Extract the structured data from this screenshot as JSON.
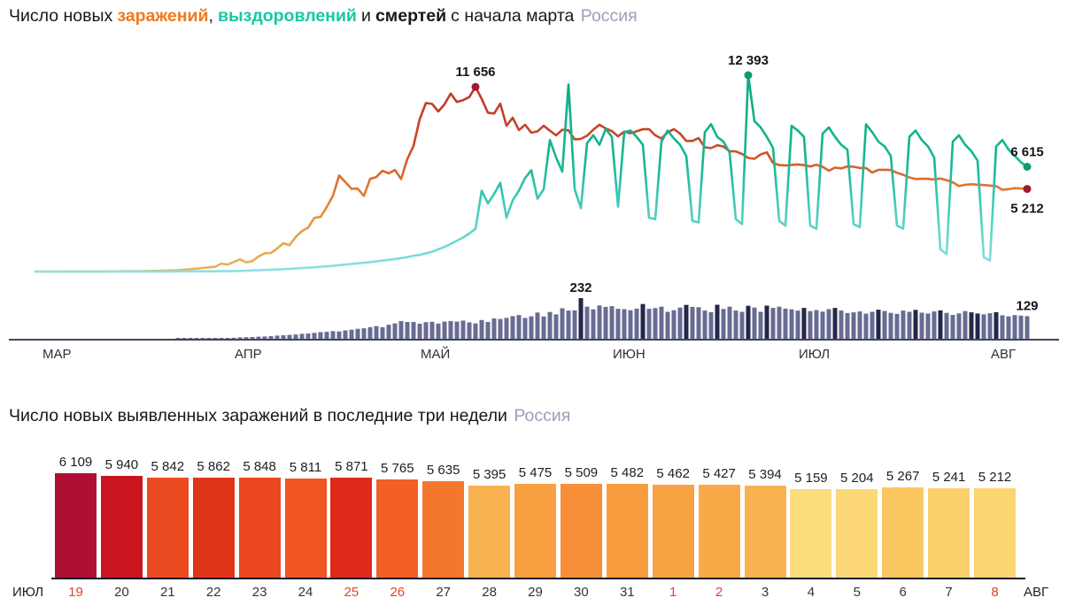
{
  "titles": {
    "top": {
      "prefix": "Число новых",
      "infections": "заражений",
      "comma": ",",
      "recoveries": "выздоровлений",
      "and": "и",
      "deaths": "смертей",
      "suffix": "с начала марта",
      "region": "Россия"
    },
    "bottom": {
      "text": "Число новых выявленных заражений в последние три недели",
      "region": "Россия"
    }
  },
  "colors": {
    "infections_word": "#f0791f",
    "recoveries_word": "#16c8a5",
    "region_text": "#9aa2b4",
    "deaths_bar": "#686c92",
    "deaths_bar_dark": "#232748",
    "top_axis": "#44455c",
    "bottom_axis": "#16182b",
    "weekend_date": "#d9472e",
    "annotation_text": "#141419",
    "month_label": "#2f3038"
  },
  "chart_data": [
    {
      "type": "line+bar",
      "title": "Число новых заражений, выздоровлений и смертей с начала марта",
      "region": "Россия",
      "x_unit": "day (1 марта — 8 августа)",
      "x_months": [
        "МАР",
        "АПР",
        "МАЙ",
        "ИЮН",
        "ИЮЛ",
        "АВГ"
      ],
      "month_start_day": [
        0,
        31,
        61,
        92,
        122,
        153
      ],
      "ylim": [
        0,
        12393
      ],
      "grid": false,
      "legend_position": "in-title",
      "series": [
        {
          "name": "заражений",
          "type": "line",
          "peak_label": "11 656",
          "end_label": "5 212",
          "dot_color": "#9c1b2e",
          "gradient": [
            [
              "0",
              "#bf3328"
            ],
            [
              "0.35",
              "#c84a28"
            ],
            [
              "0.55",
              "#e2712d"
            ],
            [
              "0.78",
              "#eb9a3f"
            ],
            [
              "1",
              "#e6b55c"
            ]
          ],
          "values": [
            0,
            0,
            1,
            1,
            2,
            2,
            3,
            3,
            4,
            5,
            6,
            7,
            9,
            11,
            14,
            17,
            21,
            26,
            32,
            40,
            52,
            61,
            71,
            87,
            120,
            150,
            182,
            228,
            270,
            302,
            501,
            440,
            601,
            771,
            582,
            658,
            954,
            1154,
            1175,
            1459,
            1786,
            1667,
            2186,
            2558,
            2774,
            3388,
            3448,
            4070,
            4785,
            6060,
            5642,
            5220,
            5236,
            4774,
            5849,
            5966,
            6361,
            6198,
            6411,
            5841,
            7099,
            7933,
            9623,
            10633,
            10581,
            10102,
            10559,
            11231,
            10699,
            10817,
            11012,
            11656,
            10899,
            10028,
            9974,
            10598,
            9200,
            9709,
            8926,
            9263,
            8764,
            8849,
            9200,
            8894,
            8599,
            8946,
            8915,
            8338,
            8371,
            8572,
            8952,
            9268,
            9035,
            8863,
            8536,
            8831,
            8726,
            8855,
            8984,
            8985,
            8595,
            8404,
            8779,
            8987,
            8706,
            8246,
            8248,
            8423,
            7843,
            7790,
            7972,
            7889,
            7600,
            7580,
            7425,
            7176,
            7113,
            7390,
            7523,
            6852,
            6719,
            6693,
            6735,
            6760,
            6714,
            6632,
            6736,
            6611,
            6368,
            6562,
            6509,
            6635,
            6615,
            6537,
            6537,
            6248,
            6422,
            6428,
            6406,
            6234,
            6109,
            5940,
            5842,
            5862,
            5848,
            5811,
            5871,
            5765,
            5635,
            5395,
            5475,
            5509,
            5482,
            5462,
            5427,
            5394,
            5159,
            5204,
            5267,
            5241,
            5212
          ]
        },
        {
          "name": "выздоровлений",
          "type": "line",
          "peak_label": "12 393",
          "end_label": "6 615",
          "dot_color": "#0f9d62",
          "gradient": [
            [
              "0",
              "#0ca97d"
            ],
            [
              "0.45",
              "#16b795"
            ],
            [
              "0.72",
              "#4fd0c2"
            ],
            [
              "1",
              "#8fe0e4"
            ]
          ],
          "values": [
            0,
            0,
            0,
            0,
            0,
            0,
            0,
            0,
            1,
            1,
            1,
            1,
            2,
            2,
            2,
            3,
            3,
            4,
            4,
            5,
            6,
            7,
            8,
            9,
            10,
            11,
            12,
            14,
            16,
            18,
            20,
            22,
            30,
            40,
            55,
            70,
            85,
            100,
            115,
            130,
            150,
            170,
            190,
            215,
            240,
            270,
            300,
            330,
            365,
            400,
            440,
            480,
            520,
            560,
            600,
            640,
            690,
            740,
            790,
            850,
            910,
            1000,
            1050,
            1150,
            1250,
            1400,
            1550,
            1750,
            1950,
            2150,
            2400,
            2700,
            5100,
            4300,
            4900,
            5600,
            3400,
            4500,
            5100,
            5900,
            6400,
            4600,
            5200,
            8300,
            7200,
            6300,
            11800,
            5200,
            4000,
            8100,
            8600,
            8000,
            9000,
            8500,
            4100,
            8800,
            8900,
            8500,
            8000,
            3400,
            3300,
            8200,
            8900,
            8400,
            8000,
            7300,
            3200,
            3100,
            8800,
            9300,
            8500,
            8200,
            7500,
            3300,
            3000,
            12393,
            9500,
            9100,
            8500,
            7800,
            3200,
            2900,
            9200,
            8900,
            8500,
            2900,
            2700,
            8700,
            9100,
            8500,
            8000,
            7700,
            3000,
            2800,
            9300,
            8800,
            8200,
            7900,
            7300,
            2900,
            2700,
            8500,
            8900,
            8300,
            7900,
            7200,
            1400,
            1100,
            8200,
            8600,
            8000,
            7600,
            7000,
            900,
            700,
            7900,
            8300,
            7700,
            7300,
            6900,
            6615
          ]
        },
        {
          "name": "смертей",
          "type": "bar",
          "peak_label": "232",
          "end_label": "129",
          "dark_days": [
            88,
            98,
            105,
            110,
            115,
            118,
            124,
            129,
            136,
            142,
            146,
            151,
            152,
            155
          ],
          "values": [
            0,
            0,
            0,
            0,
            0,
            0,
            0,
            0,
            0,
            0,
            0,
            0,
            0,
            0,
            0,
            0,
            0,
            0,
            0,
            0,
            0,
            0,
            0,
            1,
            1,
            1,
            2,
            2,
            3,
            4,
            4,
            5,
            6,
            8,
            9,
            10,
            12,
            13,
            15,
            18,
            20,
            22,
            24,
            28,
            30,
            34,
            38,
            40,
            44,
            42,
            48,
            52,
            57,
            60,
            66,
            72,
            66,
            80,
            88,
            101,
            96,
            96,
            86,
            95,
            97,
            87,
            98,
            101,
            98,
            104,
            94,
            88,
            107,
            96,
            116,
            113,
            119,
            129,
            135,
            119,
            128,
            150,
            127,
            153,
            139,
            174,
            161,
            162,
            232,
            183,
            168,
            190,
            182,
            186,
            171,
            169,
            163,
            172,
            198,
            171,
            175,
            183,
            154,
            163,
            178,
            193,
            182,
            180,
            161,
            152,
            194,
            170,
            183,
            161,
            154,
            188,
            178,
            154,
            189,
            176,
            183,
            172,
            168,
            161,
            176,
            158,
            164,
            155,
            169,
            176,
            161,
            147,
            151,
            156,
            143,
            154,
            166,
            159,
            148,
            142,
            161,
            154,
            165,
            149,
            144,
            156,
            162,
            148,
            136,
            145,
            158,
            151,
            144,
            139,
            146,
            152,
            134,
            128,
            135,
            132,
            129
          ]
        }
      ]
    },
    {
      "type": "bar",
      "title": "Число новых выявленных заражений в последние три недели",
      "region": "Россия",
      "left_axis_label": "ИЮЛ",
      "right_axis_label": "АВГ",
      "ylim_note": "bar height proportional to value",
      "bars": [
        {
          "label": "6 109",
          "value": 6109,
          "date": "19",
          "weekend": true,
          "color": "#ae1035"
        },
        {
          "label": "5 940",
          "value": 5940,
          "date": "20",
          "weekend": false,
          "color": "#c8151f"
        },
        {
          "label": "5 842",
          "value": 5842,
          "date": "21",
          "weekend": false,
          "color": "#ec4a20"
        },
        {
          "label": "5 862",
          "value": 5862,
          "date": "22",
          "weekend": false,
          "color": "#e03418"
        },
        {
          "label": "5 848",
          "value": 5848,
          "date": "23",
          "weekend": false,
          "color": "#ea461f"
        },
        {
          "label": "5 811",
          "value": 5811,
          "date": "24",
          "weekend": false,
          "color": "#f05523"
        },
        {
          "label": "5 871",
          "value": 5871,
          "date": "25",
          "weekend": true,
          "color": "#de2a19"
        },
        {
          "label": "5 765",
          "value": 5765,
          "date": "26",
          "weekend": true,
          "color": "#f26027"
        },
        {
          "label": "5 635",
          "value": 5635,
          "date": "27",
          "weekend": false,
          "color": "#f4772e"
        },
        {
          "label": "5 395",
          "value": 5395,
          "date": "28",
          "weekend": false,
          "color": "#f9b250"
        },
        {
          "label": "5 475",
          "value": 5475,
          "date": "29",
          "weekend": false,
          "color": "#f8a040"
        },
        {
          "label": "5 509",
          "value": 5509,
          "date": "30",
          "weekend": false,
          "color": "#f68f37"
        },
        {
          "label": "5 482",
          "value": 5482,
          "date": "31",
          "weekend": false,
          "color": "#f89c3d"
        },
        {
          "label": "5 462",
          "value": 5462,
          "date": "1",
          "weekend": true,
          "color": "#f8a342"
        },
        {
          "label": "5 427",
          "value": 5427,
          "date": "2",
          "weekend": true,
          "color": "#f9aa48"
        },
        {
          "label": "5 394",
          "value": 5394,
          "date": "3",
          "weekend": false,
          "color": "#f9b251"
        },
        {
          "label": "5 159",
          "value": 5159,
          "date": "4",
          "weekend": false,
          "color": "#fcdd7e"
        },
        {
          "label": "5 204",
          "value": 5204,
          "date": "5",
          "weekend": false,
          "color": "#fbd776"
        },
        {
          "label": "5 267",
          "value": 5267,
          "date": "6",
          "weekend": false,
          "color": "#fac760"
        },
        {
          "label": "5 241",
          "value": 5241,
          "date": "7",
          "weekend": false,
          "color": "#fbd06b"
        },
        {
          "label": "5 212",
          "value": 5212,
          "date": "8",
          "weekend": true,
          "color": "#fbd572"
        }
      ]
    }
  ]
}
